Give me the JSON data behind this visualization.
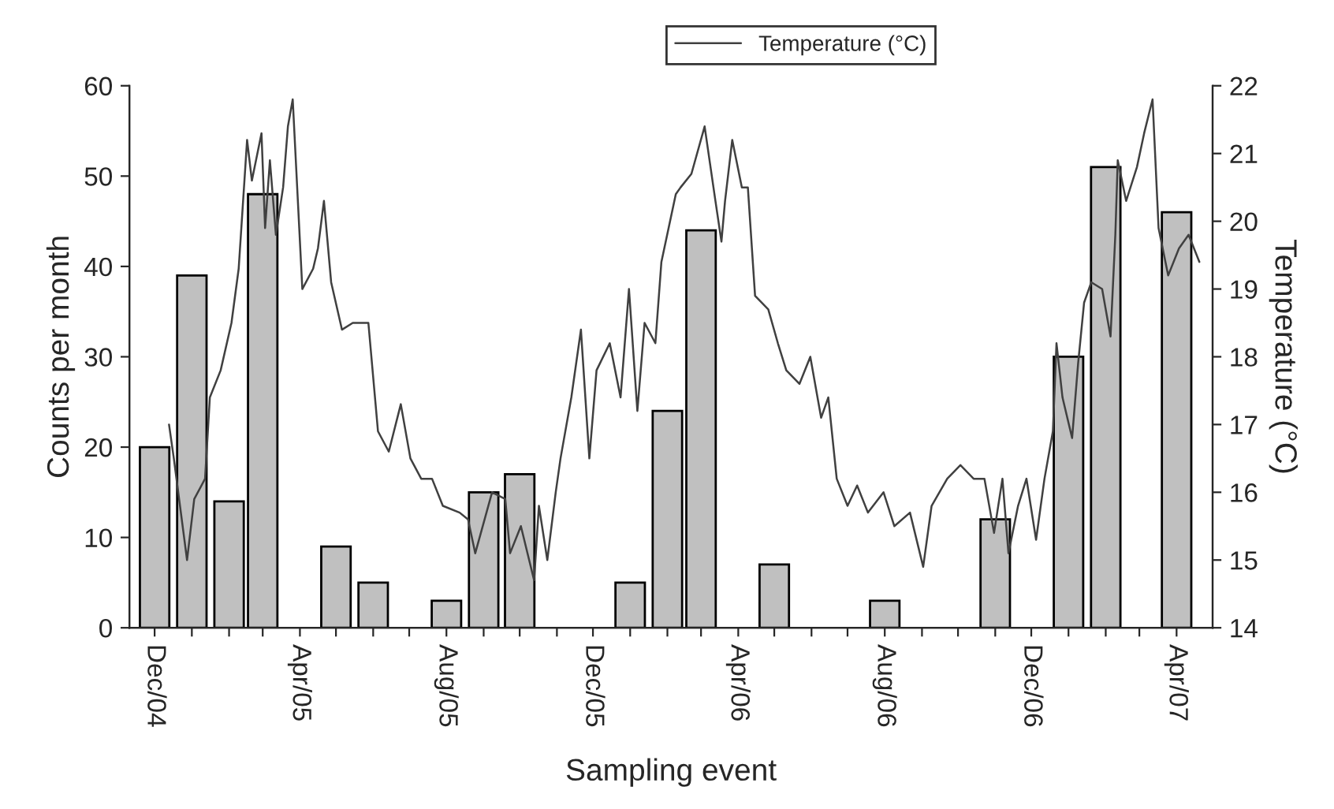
{
  "chart_data": {
    "type": "bar",
    "xlabel": "Sampling event",
    "ylabel": "Counts per month",
    "y2label": "Temperature (°C)",
    "legend": "top",
    "xlim": [
      "2004-11-10",
      "2007-05-01"
    ],
    "xticks": [
      {
        "value": "2004-12-01",
        "label": "Dec/04"
      },
      {
        "value": "2005-01-01",
        "label": null
      },
      {
        "value": "2005-02-01",
        "label": null
      },
      {
        "value": "2005-03-01",
        "label": null
      },
      {
        "value": "2005-04-01",
        "label": "Apr/05"
      },
      {
        "value": "2005-05-01",
        "label": null
      },
      {
        "value": "2005-06-01",
        "label": null
      },
      {
        "value": "2005-07-01",
        "label": null
      },
      {
        "value": "2005-08-01",
        "label": "Aug/05"
      },
      {
        "value": "2005-09-01",
        "label": null
      },
      {
        "value": "2005-10-01",
        "label": null
      },
      {
        "value": "2005-11-01",
        "label": null
      },
      {
        "value": "2005-12-01",
        "label": "Dec/05"
      },
      {
        "value": "2006-01-01",
        "label": null
      },
      {
        "value": "2006-02-01",
        "label": null
      },
      {
        "value": "2006-03-01",
        "label": null
      },
      {
        "value": "2006-04-01",
        "label": "Apr/06"
      },
      {
        "value": "2006-05-01",
        "label": null
      },
      {
        "value": "2006-06-01",
        "label": null
      },
      {
        "value": "2006-07-01",
        "label": null
      },
      {
        "value": "2006-08-01",
        "label": "Aug/06"
      },
      {
        "value": "2006-09-01",
        "label": null
      },
      {
        "value": "2006-10-01",
        "label": null
      },
      {
        "value": "2006-11-01",
        "label": null
      },
      {
        "value": "2006-12-01",
        "label": "Dec/06"
      },
      {
        "value": "2007-01-01",
        "label": null
      },
      {
        "value": "2007-02-01",
        "label": null
      },
      {
        "value": "2007-03-01",
        "label": null
      },
      {
        "value": "2007-04-01",
        "label": "Apr/07"
      }
    ],
    "ylim": [
      0,
      60
    ],
    "yticks": [
      0,
      10,
      20,
      30,
      40,
      50,
      60
    ],
    "y2lim": [
      14,
      22
    ],
    "y2ticks": [
      14,
      15,
      16,
      17,
      18,
      19,
      20,
      21,
      22
    ],
    "series": [
      {
        "color": "#c0c0c0",
        "x": [
          "2004-12-01",
          "2005-01-01",
          "2005-02-01",
          "2005-03-01",
          "2005-04-01",
          "2005-05-01",
          "2005-06-01",
          "2005-07-01",
          "2005-08-01",
          "2005-09-01",
          "2005-10-01",
          "2005-11-01",
          "2005-12-01",
          "2006-01-01",
          "2006-02-01",
          "2006-03-01",
          "2006-04-01",
          "2006-05-01",
          "2006-06-01",
          "2006-07-01",
          "2006-08-01",
          "2006-09-01",
          "2006-10-01",
          "2006-11-01",
          "2006-12-01",
          "2007-01-01",
          "2007-02-01",
          "2007-03-01",
          "2007-04-01"
        ],
        "values": [
          20,
          39,
          14,
          48,
          null,
          9,
          5,
          null,
          3,
          15,
          17,
          null,
          null,
          5,
          24,
          44,
          null,
          7,
          null,
          null,
          3,
          null,
          null,
          12,
          null,
          30,
          51,
          null,
          46
        ]
      },
      {
        "type": "line",
        "name": "Temperature (°C)",
        "axis": "y2",
        "color": "#404040",
        "x": [
          "2004-12-13",
          "2004-12-17",
          "2004-12-28",
          "2005-01-03",
          "2005-01-12",
          "2005-01-16",
          "2005-01-25",
          "2005-02-03",
          "2005-02-09",
          "2005-02-16",
          "2005-02-20",
          "2005-02-28",
          "2005-03-03",
          "2005-03-07",
          "2005-03-12",
          "2005-03-18",
          "2005-03-22",
          "2005-03-26",
          "2005-04-03",
          "2005-04-12",
          "2005-04-16",
          "2005-04-21",
          "2005-04-27",
          "2005-05-06",
          "2005-05-15",
          "2005-05-28",
          "2005-06-05",
          "2005-06-14",
          "2005-06-24",
          "2005-07-02",
          "2005-07-11",
          "2005-07-20",
          "2005-07-29",
          "2005-08-12",
          "2005-08-19",
          "2005-08-25",
          "2005-09-08",
          "2005-09-19",
          "2005-09-23",
          "2005-10-02",
          "2005-10-13",
          "2005-10-17",
          "2005-10-24",
          "2005-10-31",
          "2005-11-04",
          "2005-11-13",
          "2005-11-21",
          "2005-11-28",
          "2005-12-04",
          "2005-12-15",
          "2005-12-24",
          "2005-12-31",
          "2006-01-07",
          "2006-01-13",
          "2006-01-22",
          "2006-01-27",
          "2006-02-08",
          "2006-02-12",
          "2006-02-21",
          "2006-03-04",
          "2006-03-13",
          "2006-03-18",
          "2006-03-21",
          "2006-03-27",
          "2006-04-04",
          "2006-04-09",
          "2006-04-15",
          "2006-04-26",
          "2006-05-04",
          "2006-05-11",
          "2006-05-22",
          "2006-05-31",
          "2006-06-09",
          "2006-06-15",
          "2006-06-22",
          "2006-07-01",
          "2006-07-09",
          "2006-07-18",
          "2006-07-31",
          "2006-08-09",
          "2006-08-22",
          "2006-09-02",
          "2006-09-09",
          "2006-09-22",
          "2006-10-03",
          "2006-10-14",
          "2006-10-23",
          "2006-10-31",
          "2006-11-07",
          "2006-11-12",
          "2006-11-20",
          "2006-11-27",
          "2006-12-05",
          "2006-12-12",
          "2006-12-19",
          "2006-12-22",
          "2006-12-27",
          "2007-01-04",
          "2007-01-09",
          "2007-01-14",
          "2007-01-20",
          "2007-01-29",
          "2007-02-05",
          "2007-02-09",
          "2007-02-11",
          "2007-02-18",
          "2007-02-27",
          "2007-03-05",
          "2007-03-12",
          "2007-03-17",
          "2007-03-25",
          "2007-04-03",
          "2007-04-11",
          "2007-04-20"
        ],
        "values": [
          17.0,
          16.5,
          15.0,
          15.9,
          16.2,
          17.4,
          17.8,
          18.5,
          19.3,
          21.2,
          20.6,
          21.3,
          19.9,
          20.9,
          19.8,
          20.5,
          21.4,
          21.8,
          19.0,
          19.3,
          19.6,
          20.3,
          19.1,
          18.4,
          18.5,
          18.5,
          16.9,
          16.6,
          17.3,
          16.5,
          16.2,
          16.2,
          15.8,
          15.7,
          15.6,
          15.1,
          16.0,
          15.9,
          15.1,
          15.5,
          14.7,
          15.8,
          15.0,
          16.0,
          16.5,
          17.4,
          18.4,
          16.5,
          17.8,
          18.2,
          17.4,
          19.0,
          17.2,
          18.5,
          18.2,
          19.4,
          20.4,
          20.5,
          20.7,
          21.4,
          20.3,
          19.7,
          20.3,
          21.2,
          20.5,
          20.5,
          18.9,
          18.7,
          18.2,
          17.8,
          17.6,
          18.0,
          17.1,
          17.4,
          16.2,
          15.8,
          16.1,
          15.7,
          16.0,
          15.5,
          15.7,
          14.9,
          15.8,
          16.2,
          16.4,
          16.2,
          16.2,
          15.4,
          16.2,
          15.1,
          15.8,
          16.2,
          15.3,
          16.2,
          16.9,
          18.2,
          17.4,
          16.8,
          17.9,
          18.8,
          19.1,
          19.0,
          18.3,
          19.8,
          20.9,
          20.3,
          20.8,
          21.3,
          21.8,
          19.9,
          19.2,
          19.6,
          19.8,
          19.4
        ]
      }
    ]
  }
}
